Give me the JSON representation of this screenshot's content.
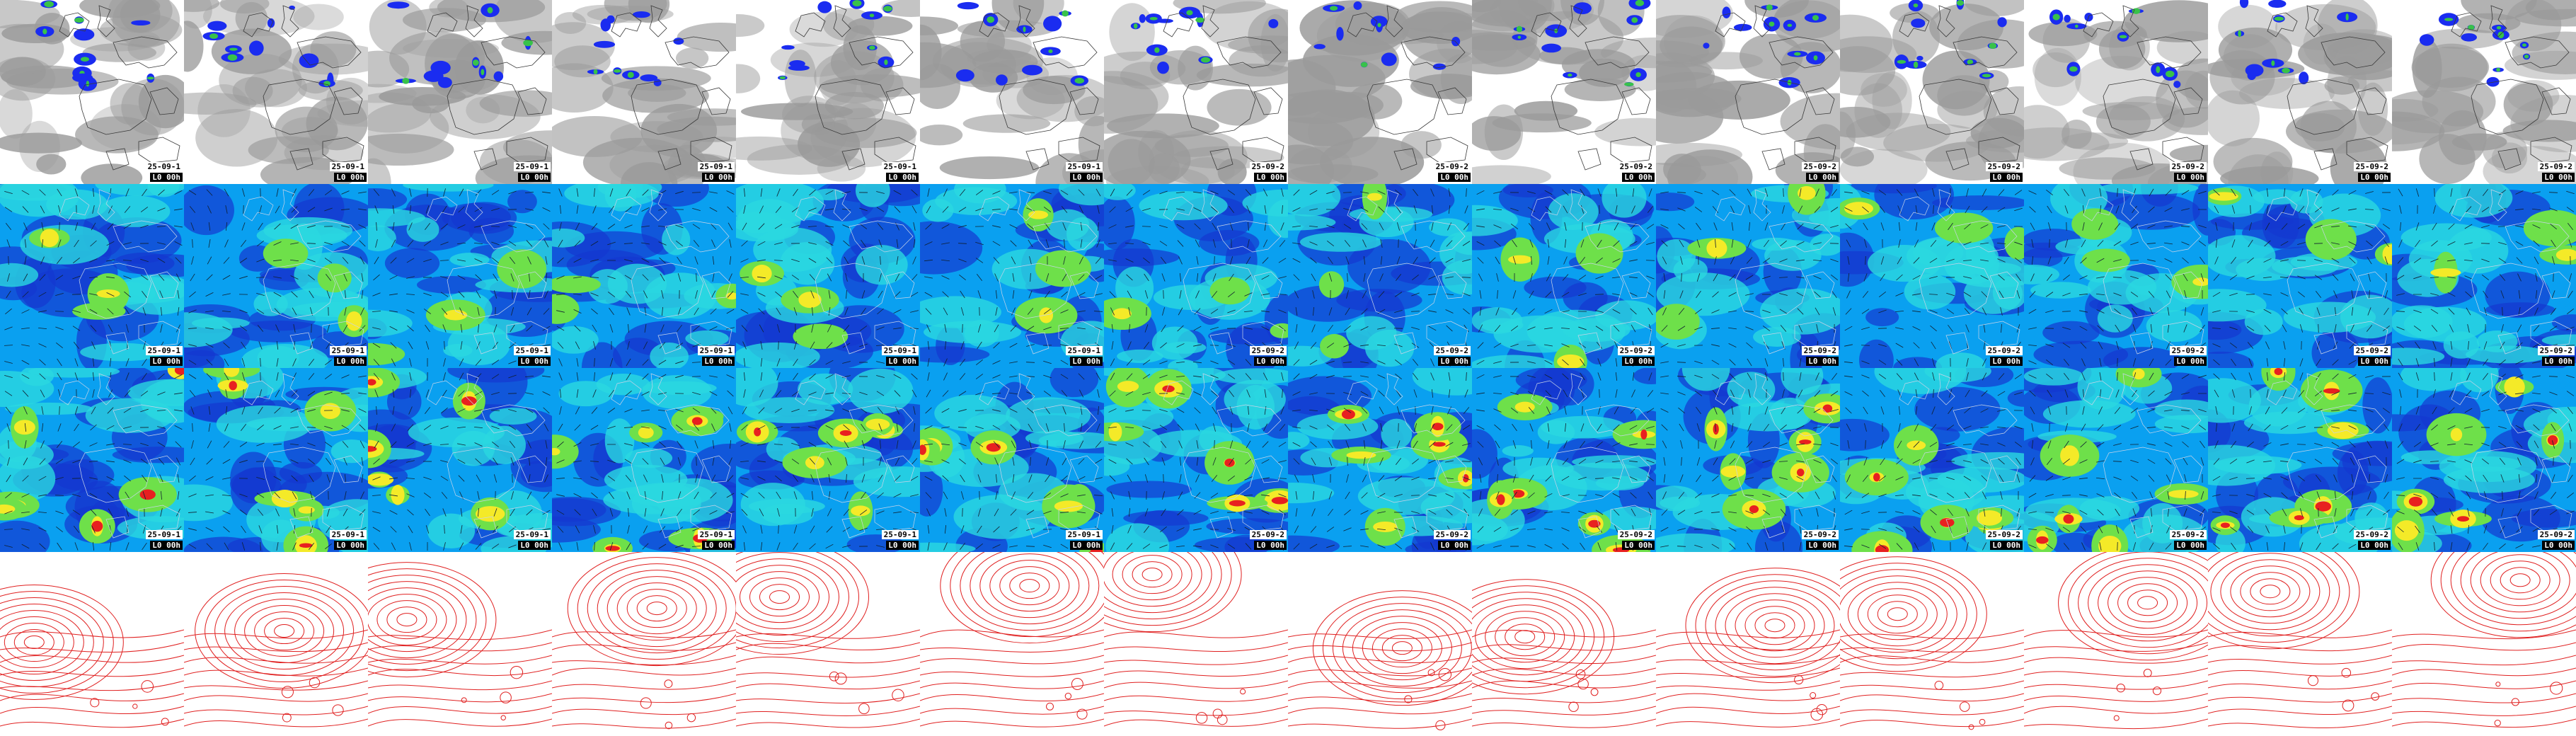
{
  "product_rows": [
    {
      "name": "cloud",
      "label_style": "light"
    },
    {
      "name": "wind-low",
      "label_style": "dark"
    },
    {
      "name": "wind-high",
      "label_style": "dark"
    },
    {
      "name": "isobars",
      "label_style": "none"
    }
  ],
  "frames": [
    {
      "date": "25-09-1",
      "lead": "L0 00h"
    },
    {
      "date": "25-09-1",
      "lead": "L0 00h"
    },
    {
      "date": "25-09-1",
      "lead": "L0 00h"
    },
    {
      "date": "25-09-1",
      "lead": "L0 00h"
    },
    {
      "date": "25-09-1",
      "lead": "L0 00h"
    },
    {
      "date": "25-09-1",
      "lead": "L0 00h"
    },
    {
      "date": "25-09-2",
      "lead": "L0 00h"
    },
    {
      "date": "25-09-2",
      "lead": "L0 00h"
    },
    {
      "date": "25-09-2",
      "lead": "L0 00h"
    },
    {
      "date": "25-09-2",
      "lead": "L0 00h"
    },
    {
      "date": "25-09-2",
      "lead": "L0 00h"
    },
    {
      "date": "25-09-2",
      "lead": "L0 00h"
    },
    {
      "date": "25-09-2",
      "lead": "L0 00h"
    },
    {
      "date": "25-09-2",
      "lead": "L0 00h"
    }
  ],
  "colors": {
    "cloud_bg": "#ffffff",
    "cloud_gray": "#9a9a9a",
    "precip_blue": "#1a2cf0",
    "precip_green": "#38c24a",
    "wind_low": "#1438d0",
    "wind_base": "#0aa0f0",
    "wind_mid": "#2ad8e0",
    "wind_green": "#6ee04a",
    "wind_yellow": "#f4ea28",
    "wind_red": "#e82020",
    "coast": "#3a3a3a",
    "isobar": "#e02020"
  }
}
